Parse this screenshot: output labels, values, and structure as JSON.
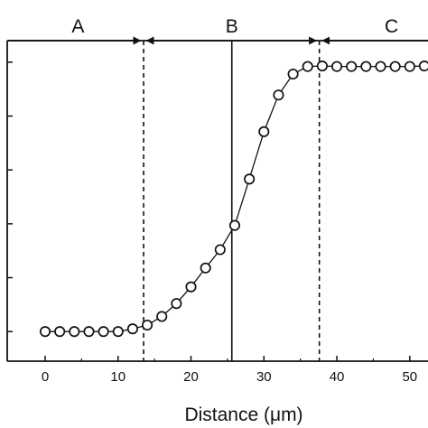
{
  "chart_data": {
    "type": "scatter",
    "xlabel": "Distance (μm)",
    "xlim": [
      -5.2,
      52.5
    ],
    "ylim": [
      -0.55,
      5.4
    ],
    "x_ticks": [
      "0",
      "10",
      "20",
      "30",
      "40",
      "50"
    ],
    "x_tick_values": [
      0,
      10,
      20,
      30,
      40,
      50
    ],
    "y_tick_values": [
      0,
      1,
      2,
      3,
      4,
      5
    ],
    "show_y_tick_labels": false,
    "grid": false,
    "connected_line": true,
    "marker": "open-circle",
    "series": [
      {
        "x": [
          0,
          2,
          4,
          6,
          8,
          10,
          12,
          14,
          16,
          18,
          20,
          22,
          24,
          26,
          28,
          30,
          32,
          34,
          36,
          38,
          40,
          42,
          44,
          46,
          48,
          50,
          52
        ],
        "y": [
          0,
          0,
          0,
          0,
          0,
          0,
          0.05,
          0.12,
          0.28,
          0.52,
          0.83,
          1.18,
          1.52,
          1.97,
          2.83,
          3.71,
          4.39,
          4.78,
          4.92,
          4.93,
          4.92,
          4.92,
          4.92,
          4.92,
          4.92,
          4.92,
          4.93
        ]
      }
    ],
    "vertical_lines": [
      {
        "x": 13.5,
        "style": "dashed"
      },
      {
        "x": 25.6,
        "style": "solid"
      },
      {
        "x": 37.6,
        "style": "dashed"
      }
    ],
    "regions": [
      {
        "label": "A",
        "x_from": -5.2,
        "x_to": 13.5,
        "label_x": 4.5
      },
      {
        "label": "B",
        "x_from": 13.5,
        "x_to": 37.6,
        "label_x": 25.6
      },
      {
        "label": "C",
        "x_from": 37.6,
        "x_to": 52.5,
        "label_x": 47.5
      }
    ],
    "region_arrow_y": 5.4
  }
}
